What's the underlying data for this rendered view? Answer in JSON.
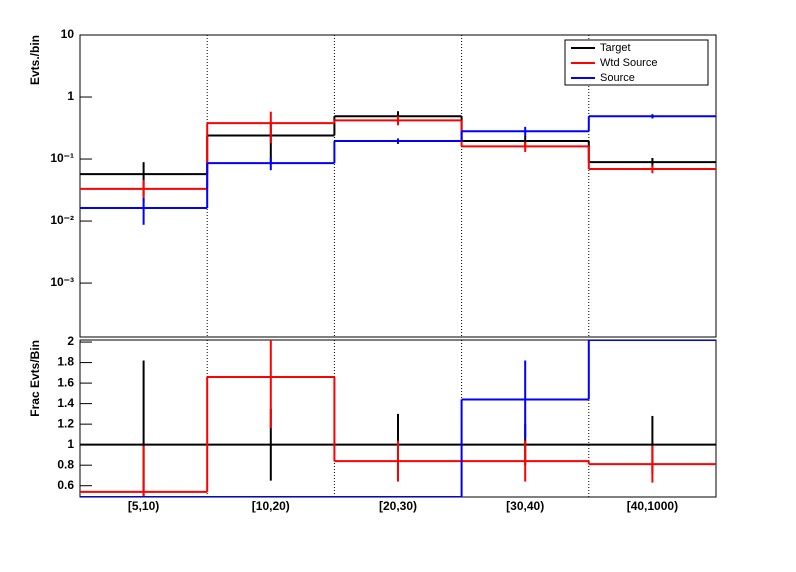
{
  "chart_data": [
    {
      "type": "step",
      "log_y": true,
      "y_label": "Evts./bin",
      "ylim": [
        0.000135,
        10
      ],
      "yticks": [
        {
          "value": 10,
          "label": "10"
        },
        {
          "value": 1,
          "label": "1"
        },
        {
          "value": 0.1,
          "label": "10⁻¹"
        },
        {
          "value": 0.01,
          "label": "10⁻²"
        },
        {
          "value": 0.001,
          "label": "10⁻³"
        }
      ],
      "legend": "top right",
      "series": [
        {
          "name": "Target",
          "color": "#000000",
          "values": [
            0.057,
            0.24,
            0.49,
            0.195,
            0.089
          ],
          "errors": [
            0.032,
            0.15,
            0.1,
            0.04,
            0.015
          ]
        },
        {
          "name": "Wtd Source",
          "color": "#ff0000",
          "values": [
            0.033,
            0.38,
            0.42,
            0.16,
            0.069
          ],
          "errors": [
            0.013,
            0.2,
            0.07,
            0.03,
            0.01
          ]
        },
        {
          "name": "Source",
          "color": "#0000ff",
          "values": [
            0.0162,
            0.086,
            0.195,
            0.28,
            0.49
          ],
          "errors": [
            0.0075,
            0.02,
            0.02,
            0.05,
            0.04
          ]
        }
      ]
    },
    {
      "type": "step",
      "log_y": false,
      "y_label": "Frac Evts/Bin",
      "categories": [
        "[5,10)",
        "[10,20)",
        "[20,30)",
        "[30,40)",
        "[40,1000)"
      ],
      "ylim": [
        0.49,
        2.02
      ],
      "yticks": [
        0.6,
        0.8,
        1,
        1.2,
        1.4,
        1.6,
        1.8,
        2
      ],
      "series": [
        {
          "color": "#000000",
          "values": [
            1,
            1,
            1,
            1,
            1
          ],
          "errors": [
            0.82,
            0.35,
            0.3,
            0.2,
            0.28
          ]
        },
        {
          "color": "#ff0000",
          "values": [
            0.54,
            1.66,
            0.84,
            0.84,
            0.81
          ],
          "errors": [
            0.45,
            0.5,
            0.2,
            0.2,
            0.18
          ]
        },
        {
          "color": "#0000ff",
          "values": [
            0.49,
            0.49,
            0.49,
            1.44,
            2.02
          ],
          "errors": [
            0,
            0,
            0,
            0.38,
            0
          ]
        }
      ]
    }
  ]
}
